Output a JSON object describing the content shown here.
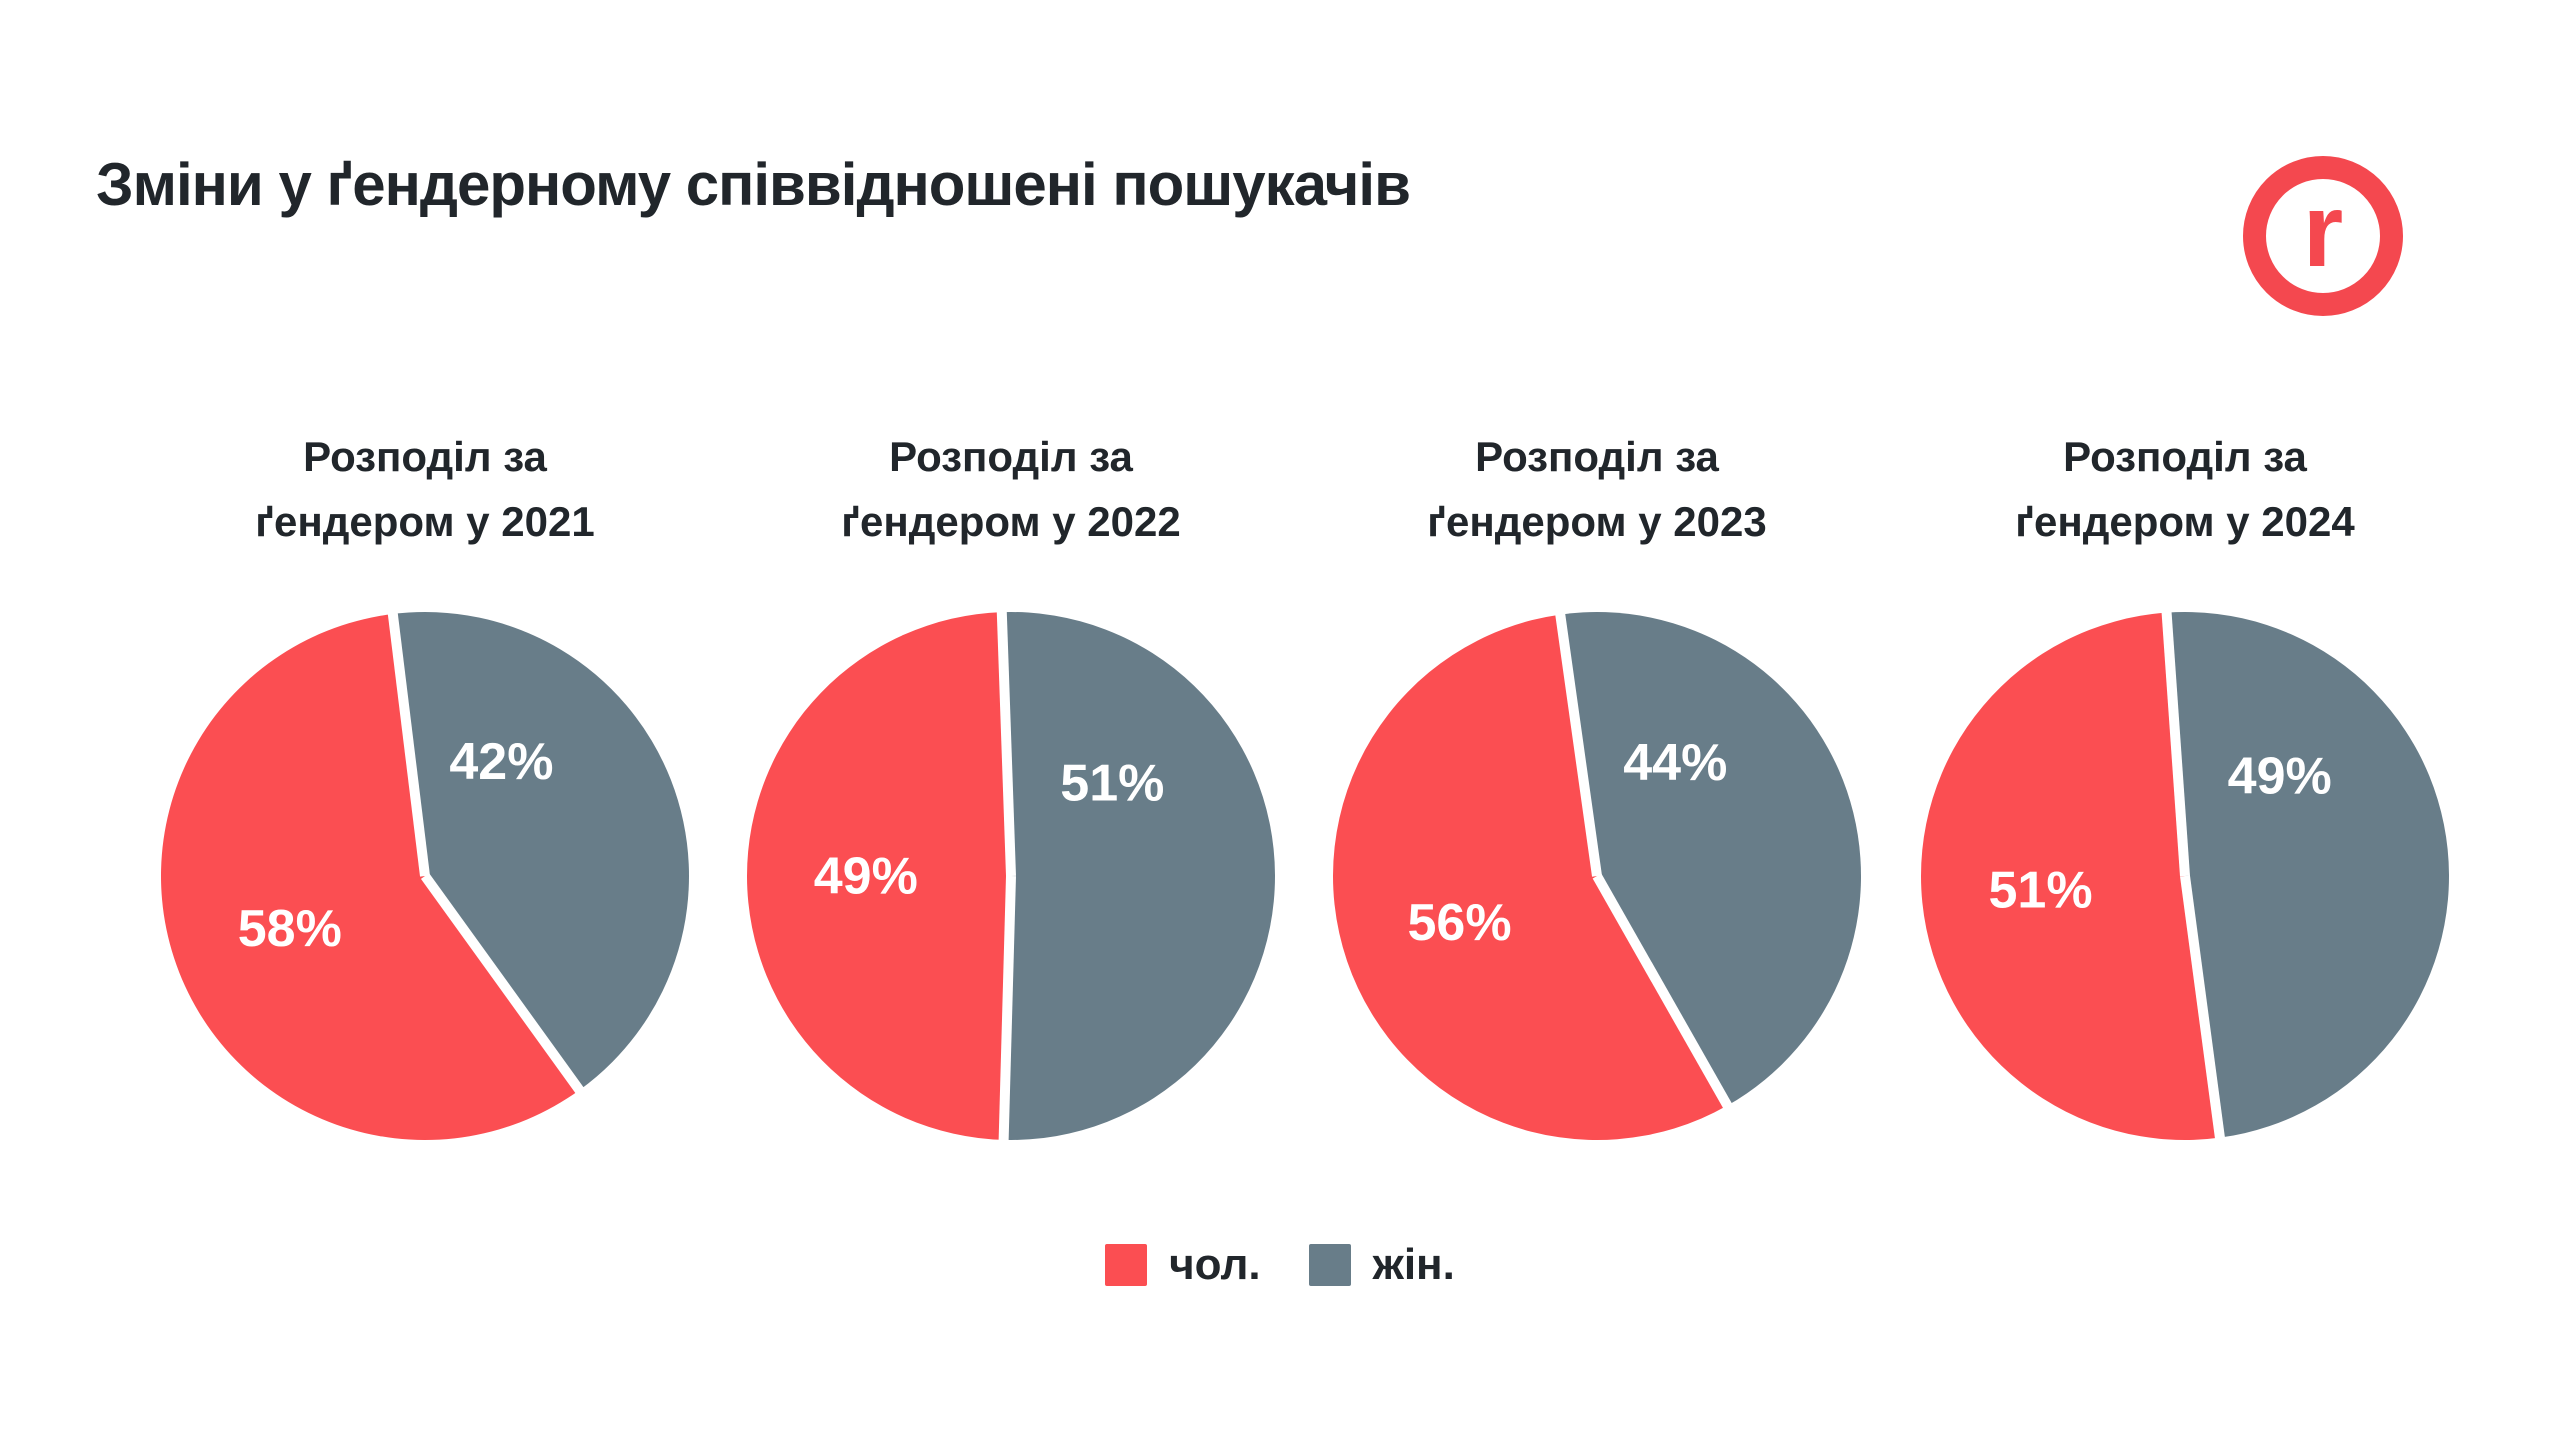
{
  "page_title": "Зміни у ґендерному співвідношені пошукачів",
  "logo": {
    "name": "robota-ua-logo",
    "letter": "r",
    "color": "#F4484F"
  },
  "colors": {
    "male": "#FB4E52",
    "female": "#687D89",
    "text": "#21262B",
    "background": "#FFFFFF",
    "value_label": "#FFFFFF"
  },
  "legend": {
    "position": "bottom-center",
    "items": [
      {
        "label": "чол.",
        "color_key": "male"
      },
      {
        "label": "жін.",
        "color_key": "female"
      }
    ]
  },
  "chart_data": [
    {
      "type": "pie",
      "title": "Розподіл за ґендером у 2021",
      "title_lines": [
        "Розподіл за",
        "ґендером у 2021"
      ],
      "slices": [
        {
          "name": "чол.",
          "value": 58,
          "label": "58%",
          "color_key": "male"
        },
        {
          "name": "жін.",
          "value": 42,
          "label": "42%",
          "color_key": "female"
        }
      ]
    },
    {
      "type": "pie",
      "title": "Розподіл за ґендером у 2022",
      "title_lines": [
        "Розподіл за",
        "ґендером у 2022"
      ],
      "slices": [
        {
          "name": "чол.",
          "value": 49,
          "label": "49%",
          "color_key": "male"
        },
        {
          "name": "жін.",
          "value": 51,
          "label": "51%",
          "color_key": "female"
        }
      ]
    },
    {
      "type": "pie",
      "title": "Розподіл за ґендером у 2023",
      "title_lines": [
        "Розподіл за",
        "ґендером у 2023"
      ],
      "slices": [
        {
          "name": "чол.",
          "value": 56,
          "label": "56%",
          "color_key": "male"
        },
        {
          "name": "жін.",
          "value": 44,
          "label": "44%",
          "color_key": "female"
        }
      ]
    },
    {
      "type": "pie",
      "title": "Розподіл за ґендером у 2024",
      "title_lines": [
        "Розподіл за",
        "ґендером у 2024"
      ],
      "slices": [
        {
          "name": "чол.",
          "value": 51,
          "label": "51%",
          "color_key": "male"
        },
        {
          "name": "жін.",
          "value": 49,
          "label": "49%",
          "color_key": "female"
        }
      ]
    }
  ]
}
